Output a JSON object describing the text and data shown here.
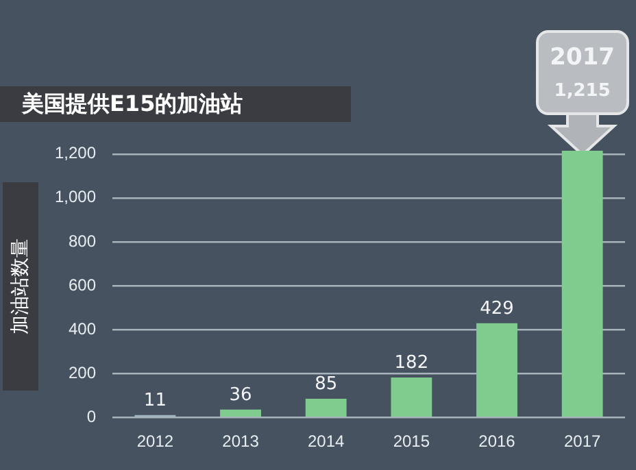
{
  "chart_data": {
    "type": "bar",
    "title": "美国提供E15的加油站",
    "ylabel": "加油站数量",
    "categories": [
      "2012",
      "2013",
      "2014",
      "2015",
      "2016",
      "2017"
    ],
    "values": [
      11,
      36,
      85,
      182,
      429,
      1215
    ],
    "colors": [
      "#9fb3bd",
      "#7fcc8e",
      "#7fcc8e",
      "#7fcc8e",
      "#7fcc8e",
      "#7fcc8e"
    ],
    "value_labels": [
      "11",
      "36",
      "85",
      "182",
      "429",
      "1,215"
    ],
    "annotations": [
      "2017"
    ],
    "ylim": [
      0,
      1215
    ],
    "yticks": [
      0,
      {
        "value": 200,
        "label": "200"
      },
      {
        "value": 400,
        "label": "400"
      },
      {
        "value": 600,
        "label": "600"
      },
      {
        "value": 800,
        "label": "800"
      },
      {
        "value": 1000,
        "label": "1,000"
      },
      {
        "value": 1200,
        "label": "1,200"
      }
    ],
    "grid": "y",
    "legend": false
  }
}
